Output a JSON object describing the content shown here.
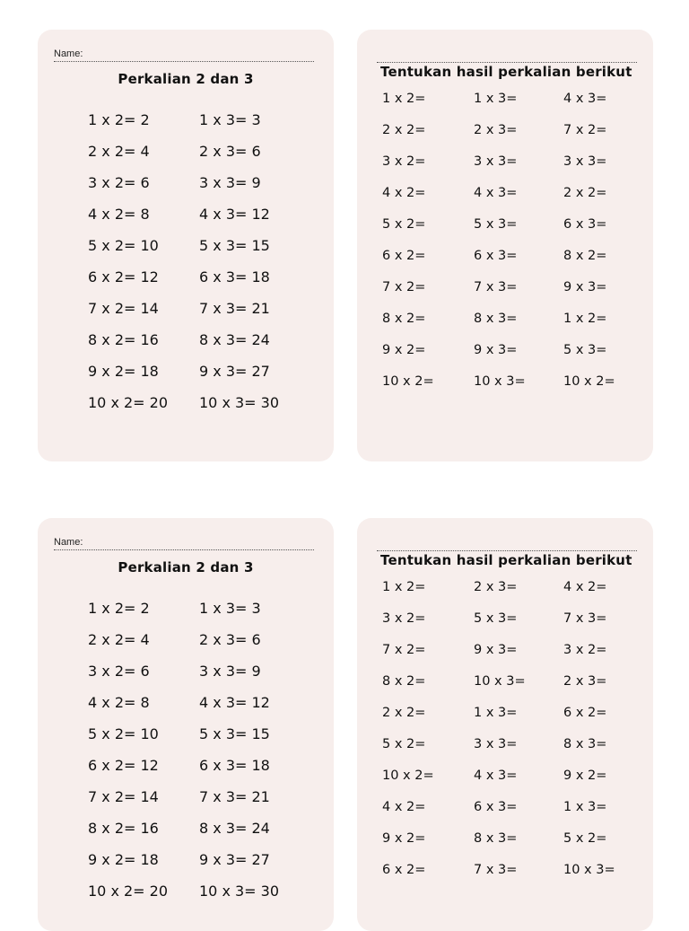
{
  "worksheets": [
    {
      "reference": {
        "name_label": "Name:",
        "title": "Perkalian 2 dan 3",
        "columns": [
          [
            "1 x 2= 2",
            "2 x 2= 4",
            "3 x 2= 6",
            "4 x 2= 8",
            "5 x 2= 10",
            "6 x 2= 12",
            "7 x 2= 14",
            "8 x 2= 16",
            "9 x 2= 18",
            "10 x 2= 20"
          ],
          [
            "1 x 3= 3",
            "2 x 3= 6",
            "3 x 3= 9",
            "4 x 3= 12",
            "5 x 3= 15",
            "6 x 3= 18",
            "7 x 3= 21",
            "8 x 3= 24",
            "9 x 3= 27",
            "10 x 3= 30"
          ]
        ]
      },
      "exercise": {
        "title": "Tentukan hasil perkalian berikut",
        "columns": [
          [
            "1 x 2=",
            "2 x 2=",
            "3 x 2=",
            "4 x 2=",
            "5 x 2=",
            "6 x 2=",
            "7 x 2=",
            "8 x 2=",
            "9 x 2=",
            "10 x 2="
          ],
          [
            "1 x 3=",
            "2 x 3=",
            "3 x 3=",
            "4 x 3=",
            "5 x 3=",
            "6 x 3=",
            "7 x 3=",
            "8 x 3=",
            "9 x 3=",
            "10 x 3="
          ],
          [
            "4 x 3=",
            "7 x 2=",
            "3 x 3=",
            "2 x 2=",
            "6 x 3=",
            "8 x 2=",
            "9 x 3=",
            "1 x 2=",
            "5 x 3=",
            "10 x 2="
          ]
        ]
      }
    },
    {
      "reference": {
        "name_label": "Name:",
        "title": "Perkalian 2 dan 3",
        "columns": [
          [
            "1 x 2= 2",
            "2 x 2= 4",
            "3 x 2= 6",
            "4 x 2= 8",
            "5 x 2= 10",
            "6 x 2= 12",
            "7 x 2= 14",
            "8 x 2= 16",
            "9 x 2= 18",
            "10 x 2= 20"
          ],
          [
            "1 x 3= 3",
            "2 x 3= 6",
            "3 x 3= 9",
            "4 x 3= 12",
            "5 x 3= 15",
            "6 x 3= 18",
            "7 x 3= 21",
            "8 x 3= 24",
            "9 x 3= 27",
            "10 x 3= 30"
          ]
        ]
      },
      "exercise": {
        "title": "Tentukan hasil perkalian berikut",
        "columns": [
          [
            "1 x 2=",
            "3 x 2=",
            "7 x 2=",
            "8 x 2=",
            "2 x 2=",
            "5 x 2=",
            "10 x 2=",
            "4 x 2=",
            "9 x 2=",
            "6 x 2="
          ],
          [
            "2 x 3=",
            "5 x 3=",
            "9 x 3=",
            "10 x 3=",
            "1 x 3=",
            "3 x 3=",
            "4 x 3=",
            "6 x 3=",
            "8 x 3=",
            "7 x 3="
          ],
          [
            "4 x 2=",
            "7 x 3=",
            "3 x 2=",
            "2 x 3=",
            "6 x 2=",
            "8 x 3=",
            "9 x 2=",
            "1 x 3=",
            "5 x 2=",
            "10 x 3="
          ]
        ]
      }
    }
  ]
}
